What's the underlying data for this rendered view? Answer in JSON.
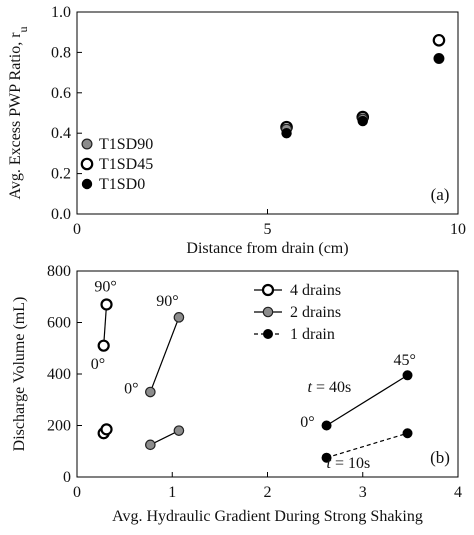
{
  "chart_data": [
    {
      "type": "scatter",
      "panel_label": "(a)",
      "xlabel": "Distance from drain (cm)",
      "ylabel": "Avg. Excess PWP Ratio, r",
      "ylabel_sub": "u",
      "xlim": [
        0,
        10
      ],
      "ylim": [
        0,
        1.0
      ],
      "xticks": [
        0,
        5,
        10
      ],
      "xtick_labels": [
        "0",
        "5",
        "10"
      ],
      "yticks": [
        0,
        0.2,
        0.4,
        0.6,
        0.8,
        1.0
      ],
      "ytick_labels": [
        "0.0",
        "0.2",
        "0.4",
        "0.6",
        "0.8",
        "1.0"
      ],
      "grid": false,
      "legend_position": "left",
      "series": [
        {
          "name": "T1SD90",
          "marker": "gray",
          "x": [
            5.5,
            7.5,
            9.5
          ],
          "y": [
            0.42,
            0.47,
            0.77
          ]
        },
        {
          "name": "T1SD45",
          "marker": "open",
          "x": [
            5.5,
            7.5,
            9.5
          ],
          "y": [
            0.43,
            0.48,
            0.86
          ]
        },
        {
          "name": "T1SD0",
          "marker": "filled",
          "x": [
            5.5,
            7.5,
            9.5
          ],
          "y": [
            0.4,
            0.46,
            0.77
          ]
        }
      ]
    },
    {
      "type": "scatter",
      "panel_label": "(b)",
      "xlabel": "Avg. Hydraulic Gradient During Strong Shaking",
      "ylabel": "Discharge Volume (mL)",
      "xlim": [
        0,
        4
      ],
      "ylim": [
        0,
        800
      ],
      "xticks": [
        0,
        1,
        2,
        3,
        4
      ],
      "xtick_labels": [
        "0",
        "1",
        "2",
        "3",
        "4"
      ],
      "yticks": [
        0,
        200,
        400,
        600,
        800
      ],
      "ytick_labels": [
        "0",
        "200",
        "400",
        "600",
        "800"
      ],
      "grid": false,
      "legend_position": "top-right",
      "series": [
        {
          "name": "4 drains",
          "marker": "open",
          "line": "solid",
          "segments": [
            {
              "x": [
                0.28,
                0.31
              ],
              "y": [
                510,
                670
              ]
            },
            {
              "x": [
                0.28,
                0.31
              ],
              "y": [
                170,
                185
              ]
            }
          ]
        },
        {
          "name": "2 drains",
          "marker": "gray",
          "line": "solid",
          "segments": [
            {
              "x": [
                0.77,
                1.07
              ],
              "y": [
                330,
                620
              ]
            },
            {
              "x": [
                0.77,
                1.07
              ],
              "y": [
                125,
                180
              ]
            }
          ]
        },
        {
          "name": "1 drain",
          "marker": "filled",
          "line": "dashed",
          "segments": [
            {
              "x": [
                2.62,
                3.47
              ],
              "y": [
                200,
                395
              ],
              "line": "solid"
            },
            {
              "x": [
                2.62,
                3.47
              ],
              "y": [
                75,
                170
              ],
              "line": "dashed"
            }
          ]
        }
      ],
      "annotations": [
        {
          "text": "90°",
          "x": 0.3,
          "y": 720
        },
        {
          "text": "0°",
          "x": 0.22,
          "y": 420
        },
        {
          "text": "90°",
          "x": 0.95,
          "y": 665
        },
        {
          "text": "0°",
          "x": 0.57,
          "y": 325
        },
        {
          "text": "45°",
          "x": 3.44,
          "y": 435
        },
        {
          "text": "0°",
          "x": 2.42,
          "y": 195
        },
        {
          "text": "40s",
          "x": 2.78,
          "y": 330
        },
        {
          "text": "10s",
          "x": 2.95,
          "y": 35
        }
      ],
      "t_labels": [
        {
          "prefix": "t",
          "rest": " = 40s",
          "x": 2.42,
          "y": 330
        },
        {
          "prefix": "t",
          "rest": " = 10s",
          "x": 2.62,
          "y": 35
        }
      ]
    }
  ]
}
